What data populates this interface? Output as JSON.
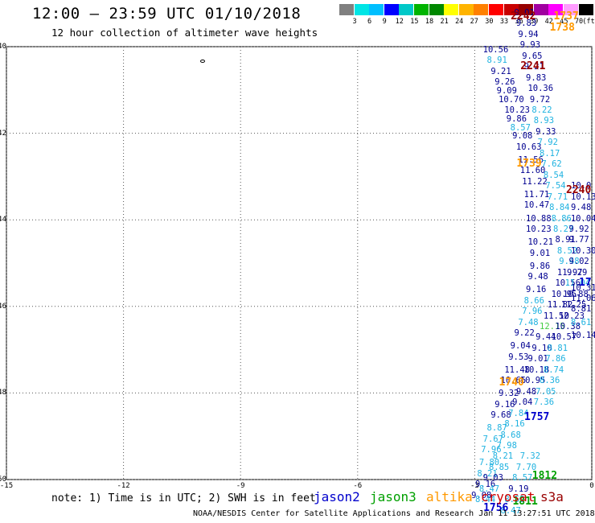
{
  "header": {
    "title": "12:00 — 23:59 UTC 01/10/2018",
    "subtitle": "12 hour collection of altimeter wave heights"
  },
  "colorbar": {
    "colors": [
      "#808080",
      "#00e5e5",
      "#00bfff",
      "#0000ff",
      "#00c8c8",
      "#00b400",
      "#008800",
      "#ffff00",
      "#ffb400",
      "#ff8000",
      "#ff0000",
      "#c80000",
      "#960000",
      "#a000a0",
      "#ff00ff",
      "#ff9cff",
      "#000000"
    ],
    "labels": [
      "3",
      "6",
      "9",
      "12",
      "15",
      "18",
      "21",
      "24",
      "27",
      "30",
      "33",
      "36",
      "39",
      "42",
      "45",
      "70"
    ],
    "unit": "(ft)"
  },
  "axes": {
    "lat_labels": [
      "-40",
      "-42",
      "-44",
      "-46",
      "-48",
      "-50"
    ],
    "lon_labels": [
      "-15",
      "-12",
      "-9",
      "-6",
      "-3",
      "0"
    ]
  },
  "satellite_colors": {
    "jason2": "#0000cc",
    "jason3": "#00a000",
    "altika": "#ff9900",
    "cryosat": "#cc0000",
    "s3a": "#990000",
    "cyan_text": "#1fb2e0",
    "navy_text": "#000090"
  },
  "chart_data": {
    "type": "scatter",
    "xlim": [
      -15,
      0
    ],
    "ylim": [
      -50,
      -40
    ],
    "points": [
      {
        "lon": -2.5,
        "lat": -40.05,
        "v": "10.56",
        "c": "navy"
      },
      {
        "lon": -2.4,
        "lat": -40.3,
        "v": "8.91",
        "c": "cyan"
      },
      {
        "lon": -2.3,
        "lat": -40.55,
        "v": "9.21",
        "c": "navy"
      },
      {
        "lon": -2.2,
        "lat": -40.8,
        "v": "9.26",
        "c": "navy"
      },
      {
        "lon": -2.15,
        "lat": -41.0,
        "v": "9.09",
        "c": "navy"
      },
      {
        "lon": -2.1,
        "lat": -41.2,
        "v": "10.70",
        "c": "navy"
      },
      {
        "lon": -1.95,
        "lat": -41.45,
        "v": "10.23",
        "c": "navy"
      },
      {
        "lon": -1.9,
        "lat": -41.65,
        "v": "9.86",
        "c": "navy"
      },
      {
        "lon": -1.8,
        "lat": -41.85,
        "v": "8.57",
        "c": "cyan"
      },
      {
        "lon": -1.75,
        "lat": -42.05,
        "v": "9.08",
        "c": "navy"
      },
      {
        "lon": -1.65,
        "lat": -42.3,
        "v": "10.63",
        "c": "navy"
      },
      {
        "lon": -1.6,
        "lat": -42.6,
        "v": "11.56",
        "c": "navy"
      },
      {
        "lon": -1.55,
        "lat": -42.85,
        "v": "11.60",
        "c": "navy"
      },
      {
        "lon": -1.5,
        "lat": -43.1,
        "v": "11.22",
        "c": "navy"
      },
      {
        "lon": -1.45,
        "lat": -43.4,
        "v": "11.71",
        "c": "navy"
      },
      {
        "lon": -1.45,
        "lat": -43.65,
        "v": "10.47",
        "c": "navy"
      },
      {
        "lon": -1.4,
        "lat": -43.95,
        "v": "10.88",
        "c": "navy"
      },
      {
        "lon": -1.4,
        "lat": -44.2,
        "v": "10.23",
        "c": "navy"
      },
      {
        "lon": -1.35,
        "lat": -44.5,
        "v": "10.21",
        "c": "navy"
      },
      {
        "lon": -1.3,
        "lat": -44.75,
        "v": "9.01",
        "c": "navy"
      },
      {
        "lon": -1.3,
        "lat": -45.05,
        "v": "9.86",
        "c": "navy"
      },
      {
        "lon": -1.35,
        "lat": -45.3,
        "v": "9.48",
        "c": "navy"
      },
      {
        "lon": -1.4,
        "lat": -45.6,
        "v": "9.16",
        "c": "navy"
      },
      {
        "lon": -1.45,
        "lat": -45.85,
        "v": "8.66",
        "c": "cyan"
      },
      {
        "lon": -1.5,
        "lat": -46.1,
        "v": "7.96",
        "c": "cyan"
      },
      {
        "lon": -1.6,
        "lat": -46.35,
        "v": "7.48",
        "c": "cyan"
      },
      {
        "lon": -1.7,
        "lat": -46.6,
        "v": "9.22",
        "c": "navy"
      },
      {
        "lon": -1.8,
        "lat": -46.9,
        "v": "9.04",
        "c": "navy"
      },
      {
        "lon": -1.85,
        "lat": -47.15,
        "v": "9.53",
        "c": "navy"
      },
      {
        "lon": -1.95,
        "lat": -47.45,
        "v": "11.48",
        "c": "navy"
      },
      {
        "lon": -2.05,
        "lat": -47.7,
        "v": "10.66",
        "c": "navy"
      },
      {
        "lon": -2.1,
        "lat": -48.0,
        "v": "9.32",
        "c": "navy"
      },
      {
        "lon": -2.2,
        "lat": -48.25,
        "v": "9.16",
        "c": "navy"
      },
      {
        "lon": -2.3,
        "lat": -48.5,
        "v": "9.68",
        "c": "navy"
      },
      {
        "lon": -2.4,
        "lat": -48.8,
        "v": "8.87",
        "c": "cyan"
      },
      {
        "lon": -2.5,
        "lat": -49.05,
        "v": "7.67",
        "c": "cyan"
      },
      {
        "lon": -2.55,
        "lat": -49.3,
        "v": "7.96",
        "c": "cyan"
      },
      {
        "lon": -2.6,
        "lat": -49.6,
        "v": "7.80",
        "c": "cyan"
      },
      {
        "lon": -2.65,
        "lat": -49.85,
        "v": "8.21",
        "c": "cyan"
      },
      {
        "lon": -2.7,
        "lat": -50.1,
        "v": "9.16",
        "c": "navy"
      },
      {
        "lon": -2.8,
        "lat": -50.35,
        "v": "9.08",
        "c": "navy"
      },
      {
        "lon": -2.7,
        "lat": -50.45,
        "v": "8.44",
        "c": "cyan"
      },
      {
        "lon": -2.6,
        "lat": -50.2,
        "v": "8.47",
        "c": "cyan"
      },
      {
        "lon": -2.5,
        "lat": -49.95,
        "v": "9.03",
        "c": "navy"
      },
      {
        "lon": -2.35,
        "lat": -49.7,
        "v": "8.85",
        "c": "cyan"
      },
      {
        "lon": -2.25,
        "lat": -49.45,
        "v": "8.21",
        "c": "cyan"
      },
      {
        "lon": -2.15,
        "lat": -49.2,
        "v": "7.98",
        "c": "cyan"
      },
      {
        "lon": -2.05,
        "lat": -48.95,
        "v": "8.68",
        "c": "cyan"
      },
      {
        "lon": -1.95,
        "lat": -48.7,
        "v": "8.16",
        "c": "cyan"
      },
      {
        "lon": -1.85,
        "lat": -48.45,
        "v": "7.84",
        "c": "cyan"
      },
      {
        "lon": -1.75,
        "lat": -48.2,
        "v": "9.04",
        "c": "navy"
      },
      {
        "lon": -1.65,
        "lat": -47.95,
        "v": "9.48",
        "c": "navy"
      },
      {
        "lon": -1.55,
        "lat": -47.7,
        "v": "10.95",
        "c": "navy"
      },
      {
        "lon": -1.45,
        "lat": -47.45,
        "v": "10.18",
        "c": "navy"
      },
      {
        "lon": -1.35,
        "lat": -47.2,
        "v": "9.01",
        "c": "navy"
      },
      {
        "lon": -1.25,
        "lat": -46.95,
        "v": "9.10",
        "c": "navy"
      },
      {
        "lon": -1.15,
        "lat": -46.7,
        "v": "9.44",
        "c": "navy"
      },
      {
        "lon": -1.05,
        "lat": -46.45,
        "v": "12.15",
        "c": "green"
      },
      {
        "lon": -0.95,
        "lat": -46.2,
        "v": "11.52",
        "c": "navy"
      },
      {
        "lon": -0.85,
        "lat": -45.95,
        "v": "11.82",
        "c": "navy"
      },
      {
        "lon": -0.75,
        "lat": -45.7,
        "v": "10.95",
        "c": "navy"
      },
      {
        "lon": -0.65,
        "lat": -45.45,
        "v": "10.56",
        "c": "navy"
      },
      {
        "lon": -0.6,
        "lat": -45.2,
        "v": "11.97",
        "c": "navy"
      },
      {
        "lon": -0.55,
        "lat": -44.95,
        "v": "9.48",
        "c": "cyan"
      },
      {
        "lon": -0.6,
        "lat": -44.7,
        "v": "8.52",
        "c": "cyan"
      },
      {
        "lon": -0.65,
        "lat": -44.45,
        "v": "8.91",
        "c": "navy"
      },
      {
        "lon": -0.7,
        "lat": -44.2,
        "v": "8.27",
        "c": "cyan"
      },
      {
        "lon": -0.75,
        "lat": -43.95,
        "v": "8.86",
        "c": "cyan"
      },
      {
        "lon": -0.8,
        "lat": -43.7,
        "v": "8.84",
        "c": "cyan"
      },
      {
        "lon": -0.85,
        "lat": -43.45,
        "v": "7.71",
        "c": "cyan"
      },
      {
        "lon": -0.9,
        "lat": -43.2,
        "v": "7.54",
        "c": "cyan"
      },
      {
        "lon": -0.95,
        "lat": -42.95,
        "v": "8.54",
        "c": "cyan"
      },
      {
        "lon": -1.0,
        "lat": -42.7,
        "v": "7.62",
        "c": "cyan"
      },
      {
        "lon": -1.05,
        "lat": -42.45,
        "v": "8.17",
        "c": "cyan"
      },
      {
        "lon": -1.1,
        "lat": -42.2,
        "v": "7.92",
        "c": "cyan"
      },
      {
        "lon": -1.15,
        "lat": -41.95,
        "v": "9.33",
        "c": "navy"
      },
      {
        "lon": -1.2,
        "lat": -41.7,
        "v": "8.93",
        "c": "cyan"
      },
      {
        "lon": -1.25,
        "lat": -41.45,
        "v": "8.22",
        "c": "cyan"
      },
      {
        "lon": -1.3,
        "lat": -41.2,
        "v": "9.72",
        "c": "navy"
      },
      {
        "lon": -1.35,
        "lat": -40.95,
        "v": "10.36",
        "c": "navy"
      },
      {
        "lon": -1.4,
        "lat": -40.7,
        "v": "9.83",
        "c": "navy"
      },
      {
        "lon": -1.45,
        "lat": -40.45,
        "v": "9.21",
        "c": "navy"
      },
      {
        "lon": -1.5,
        "lat": -40.2,
        "v": "9.65",
        "c": "navy"
      },
      {
        "lon": -1.55,
        "lat": -39.95,
        "v": "9.93",
        "c": "navy"
      },
      {
        "lon": -1.6,
        "lat": -39.7,
        "v": "9.94",
        "c": "navy"
      },
      {
        "lon": -1.65,
        "lat": -39.45,
        "v": "9.83",
        "c": "navy"
      },
      {
        "lon": -1.7,
        "lat": -39.2,
        "v": "9.01",
        "c": "navy"
      },
      {
        "lon": -1.2,
        "lat": -48.2,
        "v": "7.36",
        "c": "cyan"
      },
      {
        "lon": -1.15,
        "lat": -47.95,
        "v": "7.05",
        "c": "cyan"
      },
      {
        "lon": -1.05,
        "lat": -47.7,
        "v": "8.36",
        "c": "cyan"
      },
      {
        "lon": -0.95,
        "lat": -47.45,
        "v": "8.74",
        "c": "cyan"
      },
      {
        "lon": -0.9,
        "lat": -47.2,
        "v": "7.86",
        "c": "cyan"
      },
      {
        "lon": -0.85,
        "lat": -46.95,
        "v": "8.81",
        "c": "cyan"
      },
      {
        "lon": -0.75,
        "lat": -46.7,
        "v": "10.57",
        "c": "navy"
      },
      {
        "lon": -0.65,
        "lat": -46.45,
        "v": "10.38",
        "c": "navy"
      },
      {
        "lon": -0.55,
        "lat": -46.2,
        "v": "10.23",
        "c": "navy"
      },
      {
        "lon": -0.5,
        "lat": -45.95,
        "v": "11.25",
        "c": "navy"
      },
      {
        "lon": -0.45,
        "lat": -45.7,
        "v": "10.88",
        "c": "navy"
      },
      {
        "lon": -0.4,
        "lat": -45.45,
        "v": "11.04",
        "c": "cyan"
      },
      {
        "lon": -0.35,
        "lat": -45.2,
        "v": "9.29",
        "c": "navy"
      },
      {
        "lon": -0.3,
        "lat": -44.95,
        "v": "9.02",
        "c": "navy"
      },
      {
        "lon": -0.25,
        "lat": -44.7,
        "v": "10.30",
        "c": "navy"
      },
      {
        "lon": -0.3,
        "lat": -44.45,
        "v": "9.77",
        "c": "navy"
      },
      {
        "lon": -0.3,
        "lat": -44.2,
        "v": "9.92",
        "c": "navy"
      },
      {
        "lon": -0.25,
        "lat": -43.95,
        "v": "10.04",
        "c": "navy"
      },
      {
        "lon": -0.2,
        "lat": -43.7,
        "v": "9.48",
        "c": "navy"
      },
      {
        "lon": -0.15,
        "lat": -43.45,
        "v": "10.13",
        "c": "navy"
      },
      {
        "lon": -0.1,
        "lat": -43.2,
        "v": "10.0",
        "c": "navy"
      },
      {
        "lon": -1.55,
        "lat": -49.45,
        "v": "7.32",
        "c": "cyan"
      },
      {
        "lon": -1.65,
        "lat": -49.7,
        "v": "7.70",
        "c": "cyan"
      },
      {
        "lon": -1.75,
        "lat": -49.95,
        "v": "8.57",
        "c": "cyan"
      },
      {
        "lon": -1.85,
        "lat": -50.2,
        "v": "9.19",
        "c": "navy"
      },
      {
        "lon": -1.95,
        "lat": -50.45,
        "v": "8.52",
        "c": "cyan"
      },
      {
        "lon": -2.05,
        "lat": -50.7,
        "v": "8.47",
        "c": "cyan"
      },
      {
        "lon": -0.15,
        "lat": -46.05,
        "v": "8.81",
        "c": "navy"
      },
      {
        "lon": -0.1,
        "lat": -45.8,
        "v": "11.06",
        "c": "navy"
      },
      {
        "lon": -0.05,
        "lat": -45.55,
        "v": "10.31",
        "c": "navy"
      },
      {
        "lon": -0.1,
        "lat": -46.35,
        "v": "8.61",
        "c": "cyan"
      },
      {
        "lon": -0.05,
        "lat": -46.65,
        "v": "10.14",
        "c": "navy"
      }
    ],
    "time_labels": [
      {
        "lon": -1.75,
        "lat": -39.3,
        "t": "2242",
        "c": "s3a"
      },
      {
        "lon": -0.65,
        "lat": -39.3,
        "t": "1737",
        "c": "altika"
      },
      {
        "lon": -0.75,
        "lat": -39.55,
        "t": "1738",
        "c": "altika"
      },
      {
        "lon": -1.5,
        "lat": -40.45,
        "t": "2241",
        "c": "s3a"
      },
      {
        "lon": -1.6,
        "lat": -42.7,
        "t": "1739",
        "c": "altika"
      },
      {
        "lon": 0.0,
        "lat": -43.3,
        "t": "2240",
        "c": "s3a"
      },
      {
        "lon": -2.05,
        "lat": -47.75,
        "t": "1740",
        "c": "altika"
      },
      {
        "lon": -1.4,
        "lat": -48.55,
        "t": "1757",
        "c": "jason2"
      },
      {
        "lon": -1.2,
        "lat": -49.9,
        "t": "1812",
        "c": "jason3"
      },
      {
        "lon": -1.7,
        "lat": -50.5,
        "t": "1811",
        "c": "jason3"
      },
      {
        "lon": -2.45,
        "lat": -50.65,
        "t": "1756",
        "c": "jason2"
      },
      {
        "lon": 0.05,
        "lat": -45.45,
        "t": "17",
        "c": "jason2"
      }
    ]
  },
  "note": "note: 1) Time is in UTC; 2) SWH is in feet",
  "legend": [
    {
      "label": "jason2",
      "c": "jason2"
    },
    {
      "label": "jason3",
      "c": "jason3"
    },
    {
      "label": "altika",
      "c": "altika"
    },
    {
      "label": "cryosat",
      "c": "cryosat"
    },
    {
      "label": "s3a",
      "c": "s3a"
    }
  ],
  "footer": "NOAA/NESDIS Center for Satellite Applications and Research    Jan 11 13:27:51 UTC 2018"
}
